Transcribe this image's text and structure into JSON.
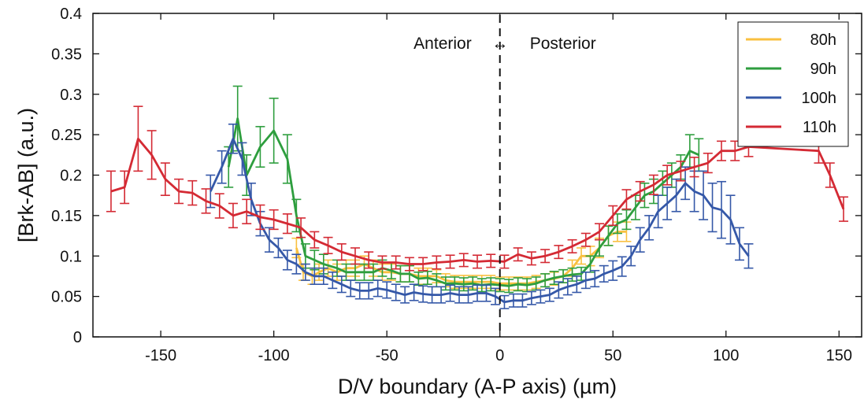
{
  "chart_data": {
    "type": "line",
    "title": "",
    "xlabel": "D/V boundary (A-P axis) (µm)",
    "ylabel": "[Brk-AB] (a.u.)",
    "xlim": [
      -180,
      160
    ],
    "ylim": [
      0,
      0.4
    ],
    "xticks": [
      -150,
      -100,
      -50,
      0,
      50,
      100,
      150
    ],
    "yticks": [
      0,
      0.05,
      0.1,
      0.15,
      0.2,
      0.25,
      0.3,
      0.35,
      0.4
    ],
    "ytick_labels": [
      "0",
      "0.05",
      "0.1",
      "0.15",
      "0.2",
      "0.25",
      "0.3",
      "0.35",
      "0.4"
    ],
    "grid": false,
    "legend_position": "top-right",
    "annotations": {
      "left": "Anterior",
      "right": "Posterior",
      "arrow": "↔",
      "divider_x": 0
    },
    "series": [
      {
        "name": "80h",
        "color": "#F9C040",
        "points": [
          [
            -90,
            0.11,
            0.012
          ],
          [
            -87,
            0.08,
            0.01
          ],
          [
            -83,
            0.075,
            0.01
          ],
          [
            -80,
            0.08,
            0.01
          ],
          [
            -76,
            0.085,
            0.01
          ],
          [
            -72,
            0.08,
            0.01
          ],
          [
            -68,
            0.085,
            0.01
          ],
          [
            -64,
            0.085,
            0.01
          ],
          [
            -60,
            0.09,
            0.01
          ],
          [
            -56,
            0.085,
            0.01
          ],
          [
            -52,
            0.08,
            0.01
          ],
          [
            -48,
            0.08,
            0.01
          ],
          [
            -44,
            0.078,
            0.01
          ],
          [
            -40,
            0.078,
            0.01
          ],
          [
            -36,
            0.075,
            0.01
          ],
          [
            -32,
            0.075,
            0.01
          ],
          [
            -28,
            0.075,
            0.008
          ],
          [
            -24,
            0.07,
            0.008
          ],
          [
            -20,
            0.068,
            0.008
          ],
          [
            -16,
            0.068,
            0.008
          ],
          [
            -12,
            0.068,
            0.008
          ],
          [
            -8,
            0.068,
            0.008
          ],
          [
            -4,
            0.068,
            0.008
          ],
          [
            0,
            0.066,
            0.008
          ],
          [
            4,
            0.066,
            0.008
          ],
          [
            8,
            0.066,
            0.008
          ],
          [
            12,
            0.066,
            0.008
          ],
          [
            16,
            0.068,
            0.008
          ],
          [
            20,
            0.07,
            0.008
          ],
          [
            24,
            0.072,
            0.008
          ],
          [
            28,
            0.075,
            0.008
          ],
          [
            32,
            0.085,
            0.01
          ],
          [
            36,
            0.1,
            0.01
          ],
          [
            40,
            0.1,
            0.012
          ],
          [
            44,
            0.11,
            0.012
          ],
          [
            48,
            0.125,
            0.012
          ],
          [
            52,
            0.13,
            0.012
          ],
          [
            56,
            0.13,
            0.012
          ]
        ]
      },
      {
        "name": "90h",
        "color": "#2E9E3E",
        "points": [
          [
            -120,
            0.21,
            0.025
          ],
          [
            -116,
            0.27,
            0.04
          ],
          [
            -112,
            0.2,
            0.025
          ],
          [
            -106,
            0.235,
            0.025
          ],
          [
            -100,
            0.255,
            0.04
          ],
          [
            -94,
            0.22,
            0.03
          ],
          [
            -90,
            0.15,
            0.02
          ],
          [
            -86,
            0.1,
            0.015
          ],
          [
            -82,
            0.095,
            0.012
          ],
          [
            -78,
            0.09,
            0.012
          ],
          [
            -72,
            0.085,
            0.01
          ],
          [
            -68,
            0.08,
            0.01
          ],
          [
            -64,
            0.08,
            0.01
          ],
          [
            -60,
            0.08,
            0.01
          ],
          [
            -56,
            0.08,
            0.01
          ],
          [
            -52,
            0.085,
            0.01
          ],
          [
            -48,
            0.082,
            0.01
          ],
          [
            -44,
            0.078,
            0.01
          ],
          [
            -40,
            0.078,
            0.01
          ],
          [
            -36,
            0.072,
            0.008
          ],
          [
            -32,
            0.073,
            0.008
          ],
          [
            -28,
            0.07,
            0.008
          ],
          [
            -24,
            0.066,
            0.008
          ],
          [
            -20,
            0.066,
            0.008
          ],
          [
            -16,
            0.065,
            0.008
          ],
          [
            -12,
            0.066,
            0.008
          ],
          [
            -8,
            0.064,
            0.008
          ],
          [
            -4,
            0.065,
            0.008
          ],
          [
            0,
            0.064,
            0.008
          ],
          [
            4,
            0.063,
            0.008
          ],
          [
            8,
            0.065,
            0.008
          ],
          [
            12,
            0.064,
            0.008
          ],
          [
            16,
            0.066,
            0.008
          ],
          [
            20,
            0.07,
            0.008
          ],
          [
            24,
            0.073,
            0.008
          ],
          [
            28,
            0.075,
            0.008
          ],
          [
            32,
            0.077,
            0.008
          ],
          [
            36,
            0.078,
            0.008
          ],
          [
            40,
            0.09,
            0.01
          ],
          [
            44,
            0.11,
            0.01
          ],
          [
            48,
            0.125,
            0.012
          ],
          [
            52,
            0.14,
            0.012
          ],
          [
            56,
            0.145,
            0.012
          ],
          [
            60,
            0.16,
            0.015
          ],
          [
            64,
            0.175,
            0.015
          ],
          [
            68,
            0.18,
            0.015
          ],
          [
            72,
            0.19,
            0.015
          ],
          [
            76,
            0.2,
            0.015
          ],
          [
            80,
            0.21,
            0.015
          ],
          [
            84,
            0.23,
            0.02
          ],
          [
            88,
            0.225,
            0.02
          ]
        ]
      },
      {
        "name": "100h",
        "color": "#3558A8",
        "points": [
          [
            -128,
            0.18,
            0.02
          ],
          [
            -123,
            0.21,
            0.02
          ],
          [
            -118,
            0.245,
            0.018
          ],
          [
            -114,
            0.22,
            0.02
          ],
          [
            -110,
            0.17,
            0.02
          ],
          [
            -106,
            0.14,
            0.015
          ],
          [
            -102,
            0.12,
            0.015
          ],
          [
            -98,
            0.11,
            0.012
          ],
          [
            -94,
            0.095,
            0.012
          ],
          [
            -90,
            0.09,
            0.012
          ],
          [
            -86,
            0.08,
            0.01
          ],
          [
            -82,
            0.075,
            0.01
          ],
          [
            -78,
            0.075,
            0.01
          ],
          [
            -74,
            0.07,
            0.01
          ],
          [
            -70,
            0.065,
            0.01
          ],
          [
            -66,
            0.06,
            0.01
          ],
          [
            -62,
            0.057,
            0.01
          ],
          [
            -58,
            0.057,
            0.01
          ],
          [
            -54,
            0.06,
            0.01
          ],
          [
            -50,
            0.058,
            0.01
          ],
          [
            -46,
            0.055,
            0.01
          ],
          [
            -42,
            0.052,
            0.01
          ],
          [
            -38,
            0.055,
            0.01
          ],
          [
            -34,
            0.053,
            0.01
          ],
          [
            -30,
            0.052,
            0.01
          ],
          [
            -26,
            0.052,
            0.01
          ],
          [
            -22,
            0.054,
            0.01
          ],
          [
            -18,
            0.052,
            0.01
          ],
          [
            -14,
            0.052,
            0.01
          ],
          [
            -10,
            0.054,
            0.01
          ],
          [
            -6,
            0.054,
            0.01
          ],
          [
            -2,
            0.05,
            0.01
          ],
          [
            2,
            0.043,
            0.008
          ],
          [
            6,
            0.045,
            0.008
          ],
          [
            10,
            0.045,
            0.008
          ],
          [
            14,
            0.048,
            0.008
          ],
          [
            18,
            0.05,
            0.008
          ],
          [
            22,
            0.052,
            0.008
          ],
          [
            26,
            0.058,
            0.01
          ],
          [
            30,
            0.062,
            0.01
          ],
          [
            34,
            0.065,
            0.01
          ],
          [
            38,
            0.07,
            0.01
          ],
          [
            42,
            0.072,
            0.01
          ],
          [
            46,
            0.078,
            0.01
          ],
          [
            50,
            0.082,
            0.012
          ],
          [
            54,
            0.087,
            0.012
          ],
          [
            58,
            0.1,
            0.012
          ],
          [
            62,
            0.12,
            0.015
          ],
          [
            66,
            0.135,
            0.015
          ],
          [
            70,
            0.155,
            0.02
          ],
          [
            74,
            0.165,
            0.02
          ],
          [
            78,
            0.175,
            0.02
          ],
          [
            82,
            0.19,
            0.02
          ],
          [
            86,
            0.18,
            0.025
          ],
          [
            90,
            0.175,
            0.03
          ],
          [
            94,
            0.16,
            0.03
          ],
          [
            98,
            0.157,
            0.035
          ],
          [
            102,
            0.145,
            0.03
          ],
          [
            106,
            0.115,
            0.02
          ],
          [
            110,
            0.1,
            0.015
          ]
        ]
      },
      {
        "name": "110h",
        "color": "#D42A34",
        "points": [
          [
            -172,
            0.18,
            0.025
          ],
          [
            -166,
            0.185,
            0.02
          ],
          [
            -160,
            0.245,
            0.04
          ],
          [
            -154,
            0.225,
            0.03
          ],
          [
            -148,
            0.195,
            0.02
          ],
          [
            -142,
            0.18,
            0.015
          ],
          [
            -136,
            0.178,
            0.015
          ],
          [
            -130,
            0.168,
            0.015
          ],
          [
            -124,
            0.162,
            0.015
          ],
          [
            -118,
            0.15,
            0.015
          ],
          [
            -112,
            0.155,
            0.015
          ],
          [
            -106,
            0.148,
            0.015
          ],
          [
            -100,
            0.145,
            0.012
          ],
          [
            -94,
            0.14,
            0.012
          ],
          [
            -88,
            0.135,
            0.012
          ],
          [
            -82,
            0.12,
            0.01
          ],
          [
            -76,
            0.113,
            0.01
          ],
          [
            -70,
            0.105,
            0.01
          ],
          [
            -64,
            0.1,
            0.01
          ],
          [
            -58,
            0.095,
            0.01
          ],
          [
            -52,
            0.092,
            0.008
          ],
          [
            -46,
            0.092,
            0.008
          ],
          [
            -40,
            0.09,
            0.008
          ],
          [
            -34,
            0.09,
            0.008
          ],
          [
            -28,
            0.092,
            0.008
          ],
          [
            -22,
            0.093,
            0.008
          ],
          [
            -16,
            0.095,
            0.008
          ],
          [
            -10,
            0.093,
            0.008
          ],
          [
            -4,
            0.094,
            0.008
          ],
          [
            2,
            0.093,
            0.008
          ],
          [
            8,
            0.102,
            0.008
          ],
          [
            14,
            0.097,
            0.008
          ],
          [
            20,
            0.1,
            0.008
          ],
          [
            26,
            0.105,
            0.008
          ],
          [
            32,
            0.112,
            0.008
          ],
          [
            38,
            0.12,
            0.008
          ],
          [
            44,
            0.13,
            0.01
          ],
          [
            50,
            0.15,
            0.012
          ],
          [
            56,
            0.17,
            0.012
          ],
          [
            62,
            0.18,
            0.012
          ],
          [
            68,
            0.188,
            0.012
          ],
          [
            74,
            0.2,
            0.012
          ],
          [
            80,
            0.205,
            0.012
          ],
          [
            86,
            0.21,
            0.012
          ],
          [
            92,
            0.215,
            0.012
          ],
          [
            98,
            0.23,
            0.012
          ],
          [
            104,
            0.23,
            0.012
          ],
          [
            110,
            0.235,
            0.012
          ],
          [
            141,
            0.23,
            0.015
          ],
          [
            146,
            0.2,
            0.015
          ],
          [
            152,
            0.158,
            0.015
          ]
        ]
      }
    ]
  }
}
